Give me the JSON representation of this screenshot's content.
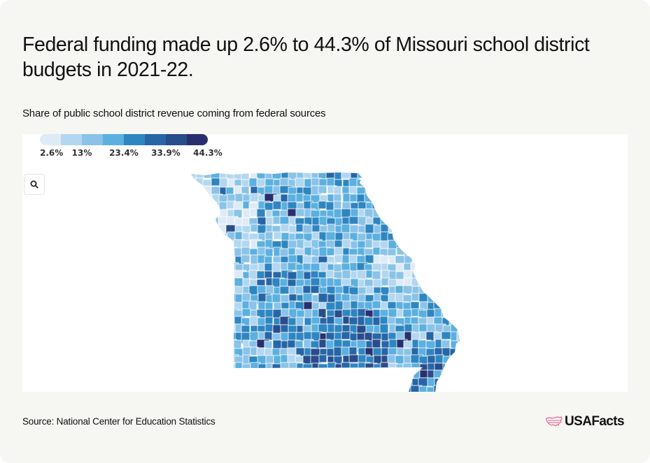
{
  "header": {
    "title": "Federal funding made up 2.6% to 44.3% of Missouri school district budgets in 2021-22.",
    "subtitle": "Share of public school district revenue coming from federal sources"
  },
  "legend": {
    "colors": [
      "#deebf7",
      "#b3d7f0",
      "#8ac3e7",
      "#5bb0df",
      "#2e86c1",
      "#2766a6",
      "#294c8a",
      "#292f6e"
    ],
    "labels": [
      "2.6%",
      "13%",
      "23.4%",
      "33.9%",
      "44.3%"
    ]
  },
  "controls": {
    "zoom_icon": "search-icon"
  },
  "map": {
    "state": "Missouri",
    "unit": "school district",
    "metric": "Share of revenue from federal sources",
    "min": "2.6%",
    "max": "44.3%",
    "no_data_color": "#e6e6e6",
    "border_color": "#ffffff"
  },
  "chart_data": {
    "type": "heatmap",
    "subtype": "choropleth",
    "title": "Federal funding made up 2.6% to 44.3% of Missouri school district budgets in 2021-22.",
    "subtitle": "Share of public school district revenue coming from federal sources",
    "geography": "Missouri school districts",
    "year": "2021-22",
    "scale": {
      "min": 2.6,
      "max": 44.3,
      "ticks": [
        2.6,
        13,
        23.4,
        33.9,
        44.3
      ],
      "tick_labels": [
        "2.6%",
        "13%",
        "23.4%",
        "33.9%",
        "44.3%"
      ],
      "bins": 8,
      "colors": [
        "#deebf7",
        "#b3d7f0",
        "#8ac3e7",
        "#5bb0df",
        "#2e86c1",
        "#2766a6",
        "#294c8a",
        "#292f6e"
      ]
    },
    "observations": {
      "northwest_kansas_city_area": "light (roughly 2.6%-13%)",
      "north_central": "mostly light-mid (13%-23%), few dark districts (~40%+)",
      "south_central_ozarks": "highest concentration of dark districts (33.9%-44.3%)",
      "southeast_bootheel": "mid-dark (23%-38%)",
      "st_louis_area": "light (2.6%-13%)"
    },
    "legend_position": "top-left"
  },
  "footer": {
    "source": "Source: National Center for Education Statistics",
    "logo_text": "USAFacts",
    "logo_color": "#e8649b"
  }
}
